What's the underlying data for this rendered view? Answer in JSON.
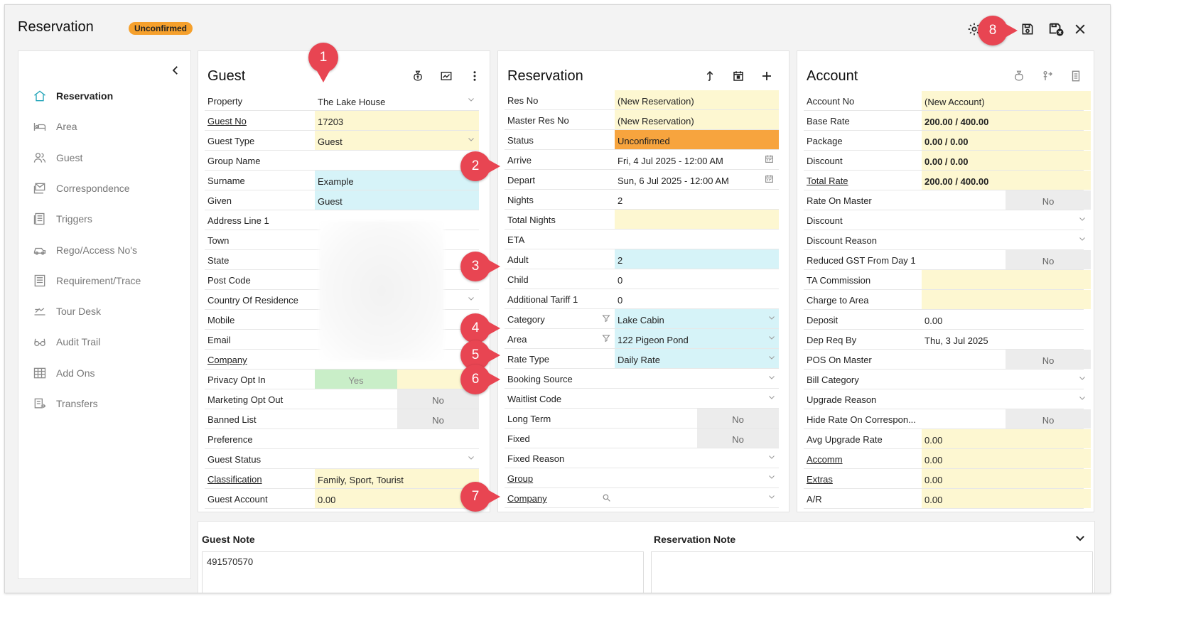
{
  "window": {
    "title": "Reservation",
    "status_badge": "Unconfirmed"
  },
  "toolbar": {
    "icons": [
      "gear-icon",
      "save-icon",
      "save-close-icon",
      "close-icon"
    ]
  },
  "nav": {
    "items": [
      {
        "label": "Reservation",
        "icon": "home-icon",
        "active": true
      },
      {
        "label": "Area",
        "icon": "bed-icon"
      },
      {
        "label": "Guest",
        "icon": "users-icon"
      },
      {
        "label": "Correspondence",
        "icon": "mail-icon"
      },
      {
        "label": "Triggers",
        "icon": "trigger-icon"
      },
      {
        "label": "Rego/Access No's",
        "icon": "car-icon"
      },
      {
        "label": "Requirement/Trace",
        "icon": "list-icon"
      },
      {
        "label": "Tour Desk",
        "icon": "tour-icon"
      },
      {
        "label": "Audit Trail",
        "icon": "glasses-icon"
      },
      {
        "label": "Add Ons",
        "icon": "grid-icon"
      },
      {
        "label": "Transfers",
        "icon": "transfer-icon"
      }
    ]
  },
  "guest": {
    "title": "Guest",
    "rows": [
      {
        "label": "Property",
        "value": "The Lake House"
      },
      {
        "label": "Guest No",
        "value": "17203"
      },
      {
        "label": "Guest Type",
        "value": "Guest"
      },
      {
        "label": "Group Name",
        "value": ""
      },
      {
        "label": "Surname",
        "value": "Example"
      },
      {
        "label": "Given",
        "value": "Guest"
      },
      {
        "label": "Address Line 1",
        "value": ""
      },
      {
        "label": "Town",
        "value": ""
      },
      {
        "label": "State",
        "value": ""
      },
      {
        "label": "Post Code",
        "value": ""
      },
      {
        "label": "Country Of Residence",
        "value": ""
      },
      {
        "label": "Mobile",
        "value": ""
      },
      {
        "label": "Email",
        "value": ""
      },
      {
        "label": "Company",
        "value": ""
      },
      {
        "label": "Privacy Opt In",
        "value": "Yes"
      },
      {
        "label": "Marketing Opt Out",
        "value": "No"
      },
      {
        "label": "Banned List",
        "value": "No"
      },
      {
        "label": "Preference",
        "value": ""
      },
      {
        "label": "Guest Status",
        "value": ""
      },
      {
        "label": "Classification",
        "value": "Family, Sport, Tourist"
      },
      {
        "label": "Guest Account",
        "value": "0.00"
      }
    ]
  },
  "reservation": {
    "title": "Reservation",
    "rows": [
      {
        "label": "Res No",
        "value": "(New Reservation)"
      },
      {
        "label": "Master Res No",
        "value": "(New Reservation)"
      },
      {
        "label": "Status",
        "value": "Unconfirmed"
      },
      {
        "label": "Arrive",
        "value": "Fri, 4 Jul 2025 - 12:00 AM"
      },
      {
        "label": "Depart",
        "value": "Sun, 6 Jul 2025 - 12:00 AM"
      },
      {
        "label": "Nights",
        "value": "2"
      },
      {
        "label": "Total Nights",
        "value": ""
      },
      {
        "label": "ETA",
        "value": ""
      },
      {
        "label": "Adult",
        "value": "2"
      },
      {
        "label": "Child",
        "value": "0"
      },
      {
        "label": "Additional Tariff 1",
        "value": "0"
      },
      {
        "label": "Category",
        "value": "Lake Cabin"
      },
      {
        "label": "Area",
        "value": "122 Pigeon Pond"
      },
      {
        "label": "Rate Type",
        "value": "Daily Rate"
      },
      {
        "label": "Booking Source",
        "value": ""
      },
      {
        "label": "Waitlist Code",
        "value": ""
      },
      {
        "label": "Long Term",
        "value": "No"
      },
      {
        "label": "Fixed",
        "value": "No"
      },
      {
        "label": "Fixed Reason",
        "value": ""
      },
      {
        "label": "Group",
        "value": ""
      },
      {
        "label": "Company",
        "value": ""
      }
    ]
  },
  "account": {
    "title": "Account",
    "rows": [
      {
        "label": "Account No",
        "value": "(New Account)"
      },
      {
        "label": "Base Rate",
        "value": "200.00 / 400.00"
      },
      {
        "label": "Package",
        "value": "0.00 / 0.00"
      },
      {
        "label": "Discount",
        "value": "0.00 / 0.00"
      },
      {
        "label": "Total Rate",
        "value": "200.00 / 400.00"
      },
      {
        "label": "Rate On Master",
        "value": "No"
      },
      {
        "label": "Discount",
        "value": ""
      },
      {
        "label": "Discount Reason",
        "value": ""
      },
      {
        "label": "Reduced GST From Day 1",
        "value": "No"
      },
      {
        "label": "TA Commission",
        "value": ""
      },
      {
        "label": "Charge to Area",
        "value": ""
      },
      {
        "label": "Deposit",
        "value": "0.00"
      },
      {
        "label": "Dep Req By",
        "value": "Thu, 3 Jul 2025"
      },
      {
        "label": "POS On Master",
        "value": "No"
      },
      {
        "label": "Bill Category",
        "value": ""
      },
      {
        "label": "Upgrade Reason",
        "value": ""
      },
      {
        "label": "Hide Rate On Correspon...",
        "value": "No"
      },
      {
        "label": "Avg Upgrade Rate",
        "value": "0.00"
      },
      {
        "label": "Accomm",
        "value": "0.00"
      },
      {
        "label": "Extras",
        "value": "0.00"
      },
      {
        "label": "A/R",
        "value": "0.00"
      }
    ]
  },
  "notes": {
    "guest_label": "Guest Note",
    "guest_text": "491570570",
    "reservation_label": "Reservation Note",
    "reservation_text": ""
  },
  "callouts": [
    "1",
    "2",
    "3",
    "4",
    "5",
    "6",
    "7",
    "8"
  ],
  "colors": {
    "badge": "#f5a02c",
    "status": "#f7a43e",
    "required": "#fdf7d1",
    "input": "#d6f3f8",
    "yes": "#c9eec8",
    "callout": "#e84552"
  }
}
